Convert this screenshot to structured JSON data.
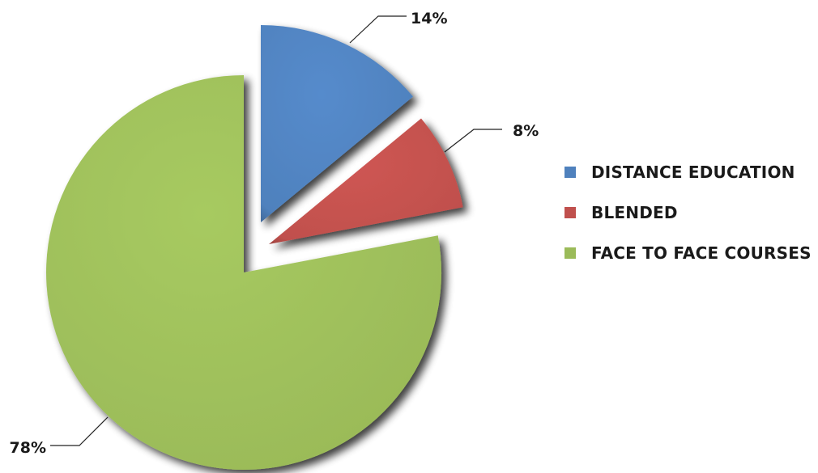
{
  "chart_data": {
    "type": "pie",
    "title": "",
    "slices": [
      {
        "name": "DISTANCE EDUCATION",
        "value": 14,
        "label": "14%",
        "color": "#4f81bd"
      },
      {
        "name": "BLENDED",
        "value": 8,
        "label": "8%",
        "color": "#c0504d"
      },
      {
        "name": "FACE TO FACE COURSES",
        "value": 78,
        "label": "78%",
        "color": "#9bbb59"
      }
    ],
    "legend_position": "right",
    "style": "exploded-3d-bevel"
  }
}
